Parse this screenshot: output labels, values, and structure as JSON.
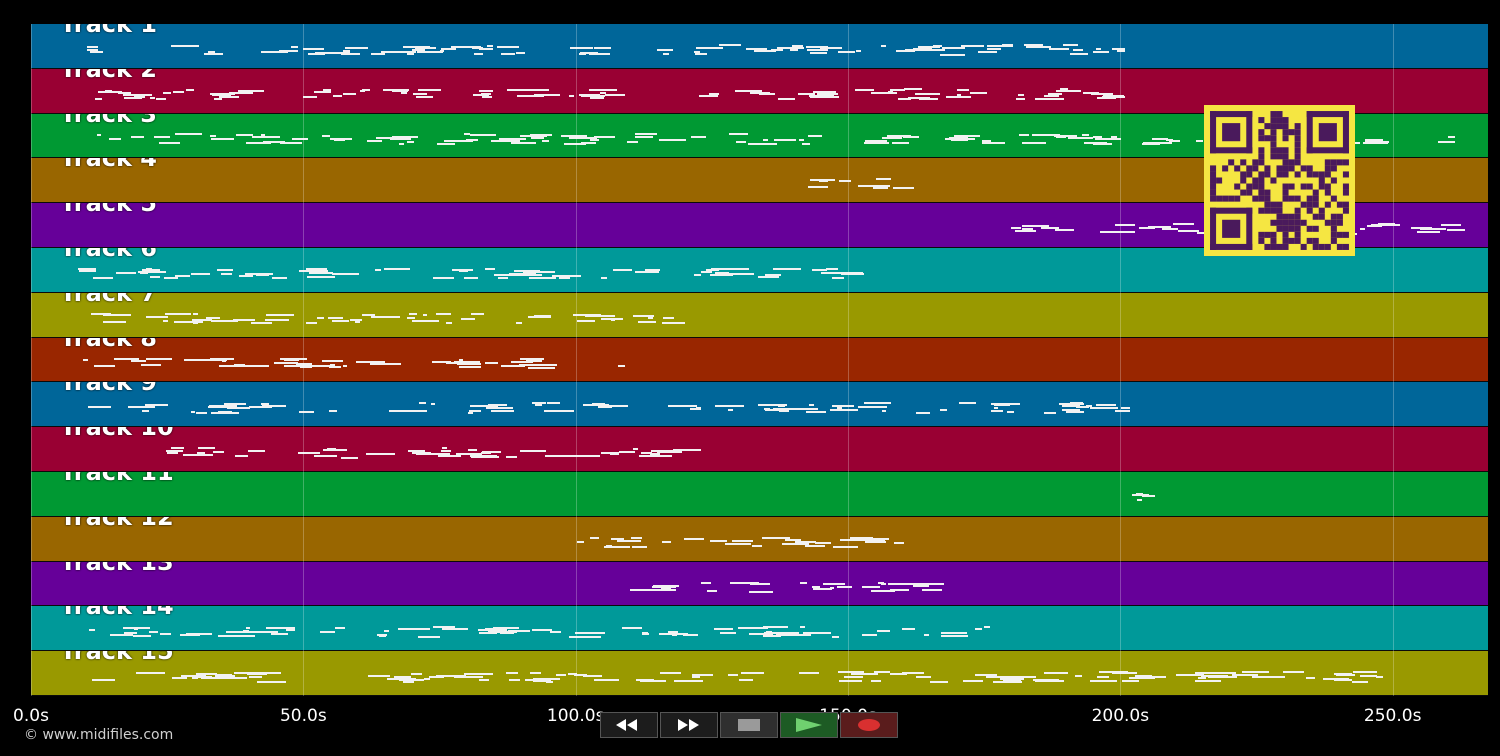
{
  "tracks": [
    {
      "label": "Track 1",
      "color": "#006699"
    },
    {
      "label": "Track 2",
      "color": "#990033"
    },
    {
      "label": "Track 3",
      "color": "#009933"
    },
    {
      "label": "Track 4",
      "color": "#996600"
    },
    {
      "label": "Track 5",
      "color": "#660099"
    },
    {
      "label": "Track 6",
      "color": "#009999"
    },
    {
      "label": "Track 7",
      "color": "#999900"
    },
    {
      "label": "Track 8",
      "color": "#992600"
    },
    {
      "label": "Track 9",
      "color": "#006699"
    },
    {
      "label": "Track 10",
      "color": "#990033"
    },
    {
      "label": "Track 11",
      "color": "#009933"
    },
    {
      "label": "Track 12",
      "color": "#996600"
    },
    {
      "label": "Track 13",
      "color": "#660099"
    },
    {
      "label": "Track 14",
      "color": "#009999"
    },
    {
      "label": "Track 15",
      "color": "#999900"
    }
  ],
  "timeline": {
    "min_seconds": 0,
    "max_seconds": 267.5,
    "ticks": [
      {
        "seconds": 0,
        "label": "0.0s"
      },
      {
        "seconds": 50,
        "label": "50.0s"
      },
      {
        "seconds": 100,
        "label": "100.0s"
      },
      {
        "seconds": 150,
        "label": "150.0s"
      },
      {
        "seconds": 200,
        "label": "200.0s"
      },
      {
        "seconds": 250,
        "label": "250.0s"
      }
    ]
  },
  "copyright": "© www.midifiles.com",
  "transport": {
    "rewind_icon": "rewind-icon",
    "forward_icon": "fast-forward-icon",
    "stop_icon": "stop-icon",
    "play_icon": "play-icon",
    "record_icon": "record-icon"
  }
}
